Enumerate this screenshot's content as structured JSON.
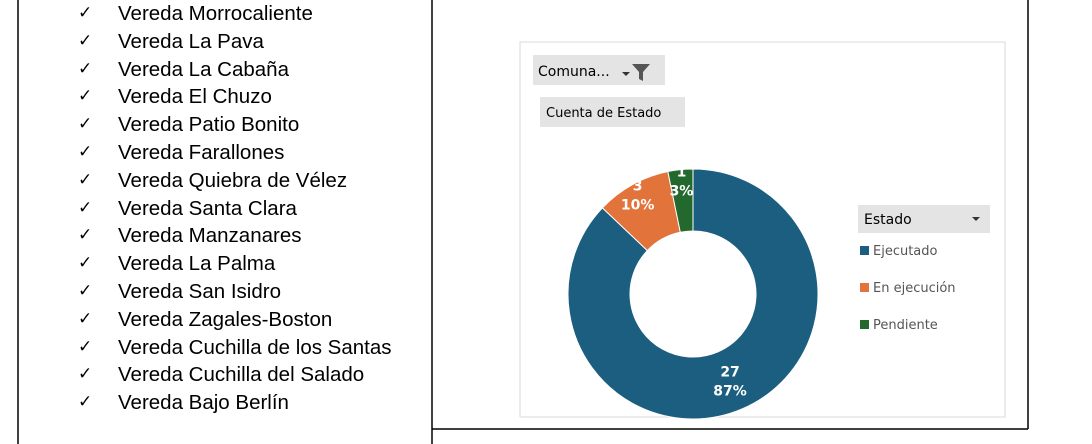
{
  "list": [
    "Vereda Morrocaliente",
    "Vereda La Pava",
    "Vereda La Cabaña",
    "Vereda El Chuzo",
    "Vereda Patio Bonito",
    "Vereda Farallones",
    "Vereda Quiebra de Vélez",
    "Vereda Santa Clara",
    "Vereda Manzanares",
    "Vereda La Palma",
    "Vereda San Isidro",
    "Vereda Zagales-Boston",
    "Vereda Cuchilla de los Santas",
    "Vereda Cuchilla del Salado",
    "Vereda Bajo Berlín"
  ],
  "chart_data": {
    "type": "donut",
    "filter_button": "Comuna...",
    "value_button": "Cuenta de Estado",
    "legend_title": "Estado",
    "categories": [
      "Ejecutado",
      "En ejecución",
      "Pendiente"
    ],
    "values": [
      27,
      3,
      1
    ],
    "percent_labels": [
      "87%",
      "10%",
      "3%"
    ],
    "colors": [
      "#1b5e80",
      "#e2733a",
      "#23692d"
    ],
    "legend": "right"
  }
}
